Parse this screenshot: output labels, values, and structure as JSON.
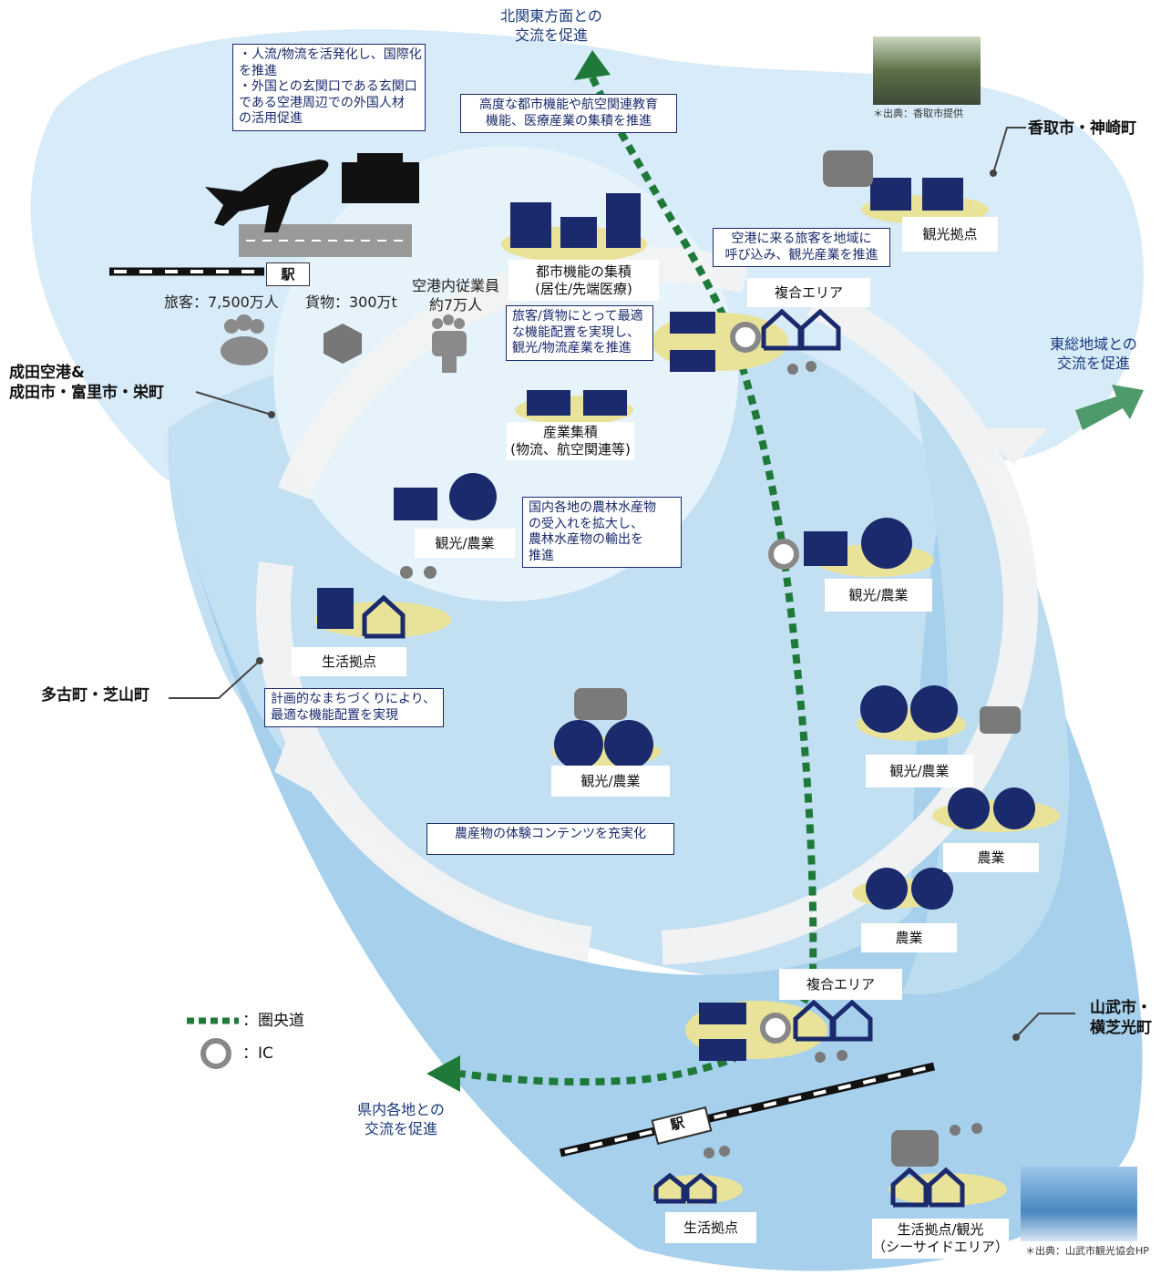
{
  "north_exchange": [
    "北関東方面との",
    "交流を促進"
  ],
  "airport_callout": [
    "・人流/物流を活発化し、国際化",
    "を推進",
    "・外国との玄関口である玄関口",
    "である空港周辺での外国人材",
    "の活用促進"
  ],
  "urban_callout": [
    "高度な都市機能や航空関連教育",
    "機能、医療産業の集積を推進"
  ],
  "katori_credit": "＊出典：香取市提供",
  "katori_region": "香取市・神崎町",
  "katori_tourism": "観光拠点",
  "tourism_callout": [
    "空港に来る旅客を地域に",
    "呼び込み、観光産業を推進"
  ],
  "station_top": "駅",
  "passengers": "旅客：7,500万人",
  "cargo": "貨物：300万t",
  "employees": [
    "空港内従業員",
    "約7万人"
  ],
  "urban_hub": [
    "都市機能の集積",
    "(居住/先端医療)"
  ],
  "mixed_area_north": "複合エリア",
  "logistics_callout": [
    "旅客/貨物にとって最適",
    "な機能配置を実現し、",
    "観光/物流産業を推進"
  ],
  "tohso_exchange": [
    "東総地域との",
    "交流を促進"
  ],
  "narita_region": [
    "成田空港&",
    "成田市・富里市・栄町"
  ],
  "industry_hub": [
    "産業集積",
    "(物流、航空関連等)"
  ],
  "tourism_agri_west": "観光/農業",
  "agri_callout": [
    "国内各地の農林水産物",
    "の受入れを拡大し、",
    "農林水産物の輸出を",
    "推進"
  ],
  "tourism_agri_ic": "観光/農業",
  "life_hub_west": "生活拠点",
  "tako_region": "多古町・芝山町",
  "planning_callout": [
    "計画的なまちづくりにより、",
    "最適な機能配置を実現"
  ],
  "tourism_agri_center": "観光/農業",
  "experience_callout": "農産物の体験コンテンツを充実化",
  "tourism_agri_east": "観光/農業",
  "agriculture_1": "農業",
  "agriculture_2": "農業",
  "mixed_area_south": "複合エリア",
  "legend": {
    "expressway": "：圏央道",
    "ic": "：IC"
  },
  "sammu_region": [
    "山武市・",
    "横芝光町"
  ],
  "prefecture_exchange": [
    "県内各地との",
    "交流を促進"
  ],
  "station_bottom": "駅",
  "life_hub_south": "生活拠点",
  "seaside_hub": [
    "生活拠点/観光",
    "（シーサイドエリア）"
  ],
  "sammu_credit": "＊出典：山武市観光協会HP"
}
